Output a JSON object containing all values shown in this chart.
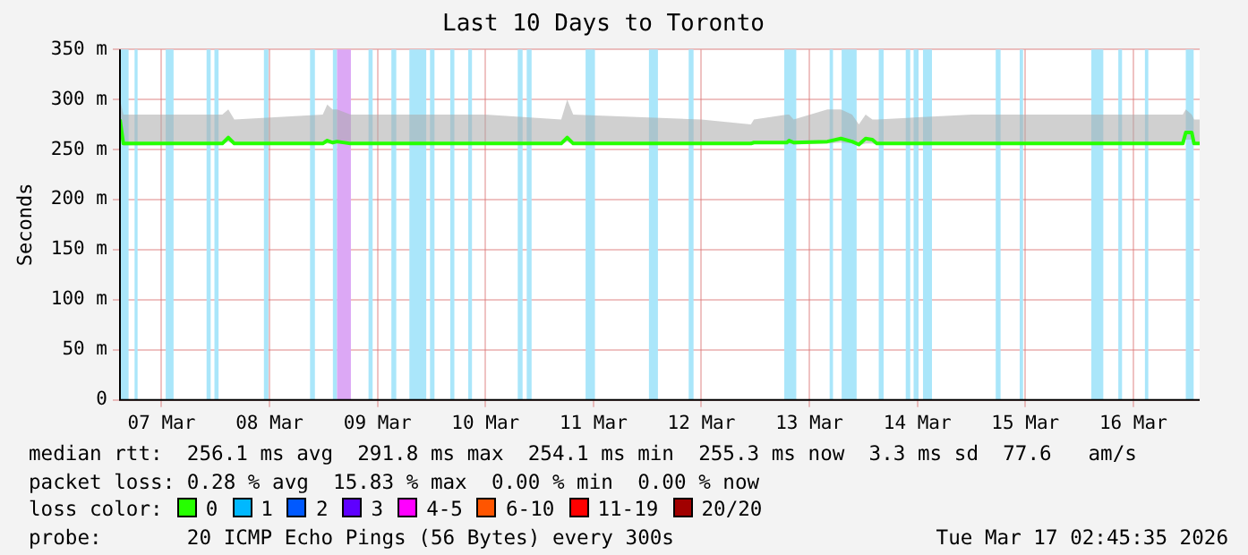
{
  "chart_data": {
    "type": "line",
    "title": "Last 10 Days to Toronto",
    "ylabel": "Seconds",
    "legend_title": "loss color:",
    "legend": "bottom",
    "grid": true,
    "marker": "none",
    "line_style": "solid",
    "xlim": [
      "2026-03-07T02:45",
      "2026-03-17T02:45"
    ],
    "xticks": [
      {
        "value": "2026-03-07T12:00",
        "label": "07 Mar"
      },
      {
        "value": "2026-03-08T12:00",
        "label": "08 Mar"
      },
      {
        "value": "2026-03-09T12:00",
        "label": "09 Mar"
      },
      {
        "value": "2026-03-10T12:00",
        "label": "10 Mar"
      },
      {
        "value": "2026-03-11T12:00",
        "label": "11 Mar"
      },
      {
        "value": "2026-03-12T12:00",
        "label": "12 Mar"
      },
      {
        "value": "2026-03-13T12:00",
        "label": "13 Mar"
      },
      {
        "value": "2026-03-14T12:00",
        "label": "14 Mar"
      },
      {
        "value": "2026-03-15T12:00",
        "label": "15 Mar"
      },
      {
        "value": "2026-03-16T12:00",
        "label": "16 Mar"
      }
    ],
    "ylim": [
      0,
      350
    ],
    "yticks": [
      0,
      {
        "value": 50,
        "label": "50 m"
      },
      {
        "value": 100,
        "label": "100 m"
      },
      {
        "value": 150,
        "label": "150 m"
      },
      {
        "value": 200,
        "label": "200 m"
      },
      {
        "value": 250,
        "label": "250 m"
      },
      {
        "value": 300,
        "label": "300 m"
      },
      {
        "value": 350,
        "label": "350 m"
      }
    ],
    "series": [
      {
        "name": "0",
        "color": "#26ff00",
        "x": [
          "2026-03-07T02:45",
          "2026-03-07T03:30",
          "2026-03-08T01:30",
          "2026-03-08T02:50",
          "2026-03-08T04:10",
          "2026-03-08T23:50",
          "2026-03-09T00:50",
          "2026-03-09T02:00",
          "2026-03-09T03:00",
          "2026-03-09T06:00",
          "2026-03-10T12:00",
          "2026-03-11T04:50",
          "2026-03-11T06:10",
          "2026-03-11T07:30",
          "2026-03-12T12:00",
          "2026-03-12T23:00",
          "2026-03-12T23:40",
          "2026-03-13T07:00",
          "2026-03-13T07:30",
          "2026-03-13T08:30",
          "2026-03-13T16:00",
          "2026-03-13T19:00",
          "2026-03-13T21:30",
          "2026-03-13T23:00",
          "2026-03-14T00:30",
          "2026-03-14T02:00",
          "2026-03-14T03:00",
          "2026-03-15T00:00",
          "2026-03-16T00:00",
          "2026-03-16T23:00",
          "2026-03-16T23:40",
          "2026-03-17T01:00",
          "2026-03-17T01:30",
          "2026-03-17T02:45"
        ],
        "values": [
          280,
          256,
          256,
          262,
          256,
          256,
          259,
          257,
          258,
          256,
          256,
          256,
          262,
          256,
          256,
          256,
          257,
          257,
          259,
          257,
          258,
          261,
          258,
          255,
          261,
          260,
          256,
          256,
          256,
          256,
          267,
          267,
          256,
          256
        ],
        "lower": [
          275,
          254,
          255,
          258,
          255,
          255,
          256,
          255,
          256,
          255,
          255,
          255,
          258,
          255,
          255,
          255,
          256,
          256,
          256,
          255,
          256,
          257,
          256,
          254,
          256,
          256,
          255,
          255,
          255,
          255,
          260,
          260,
          255,
          255
        ],
        "upper": [
          300,
          285,
          285,
          290,
          280,
          285,
          295,
          290,
          290,
          285,
          285,
          280,
          300,
          285,
          280,
          275,
          280,
          285,
          285,
          280,
          290,
          290,
          285,
          275,
          285,
          280,
          280,
          285,
          285,
          285,
          290,
          285,
          280,
          280
        ]
      },
      {
        "name": "1",
        "color": "#00b8ff"
      },
      {
        "name": "2",
        "color": "#0059ff"
      },
      {
        "name": "3",
        "color": "#5e00ff"
      },
      {
        "name": "4-5",
        "color": "#ff00ff"
      },
      {
        "name": "6-10",
        "color": "#ff5500"
      },
      {
        "name": "11-19",
        "color": "#ff0000"
      },
      {
        "name": "20/20",
        "color": "#a10000"
      }
    ],
    "bands": [
      {
        "axis": "x",
        "from": "2026-03-07T02:45",
        "to": "2026-03-07T04:40",
        "color": "#aae6fa"
      },
      {
        "axis": "x",
        "from": "2026-03-07T06:00",
        "to": "2026-03-07T06:40",
        "color": "#aae6fa"
      },
      {
        "axis": "x",
        "from": "2026-03-07T12:55",
        "to": "2026-03-07T14:40",
        "color": "#aae6fa"
      },
      {
        "axis": "x",
        "from": "2026-03-07T22:00",
        "to": "2026-03-07T22:55",
        "color": "#aae6fa"
      },
      {
        "axis": "x",
        "from": "2026-03-07T23:45",
        "to": "2026-03-08T00:40",
        "color": "#aae6fa"
      },
      {
        "axis": "x",
        "from": "2026-03-08T10:45",
        "to": "2026-03-08T11:45",
        "color": "#aae6fa"
      },
      {
        "axis": "x",
        "from": "2026-03-08T21:00",
        "to": "2026-03-08T22:05",
        "color": "#aae6fa"
      },
      {
        "axis": "x",
        "from": "2026-03-09T02:05",
        "to": "2026-03-09T03:00",
        "color": "#aae6fa"
      },
      {
        "axis": "x",
        "from": "2026-03-09T03:00",
        "to": "2026-03-09T06:05",
        "color": "#dca8f5"
      },
      {
        "axis": "x",
        "from": "2026-03-09T10:00",
        "to": "2026-03-09T10:55",
        "color": "#aae6fa"
      },
      {
        "axis": "x",
        "from": "2026-03-09T15:05",
        "to": "2026-03-09T16:10",
        "color": "#aae6fa"
      },
      {
        "axis": "x",
        "from": "2026-03-09T19:05",
        "to": "2026-03-09T22:50",
        "color": "#aae6fa"
      },
      {
        "axis": "x",
        "from": "2026-03-09T23:40",
        "to": "2026-03-10T00:40",
        "color": "#aae6fa"
      },
      {
        "axis": "x",
        "from": "2026-03-10T04:10",
        "to": "2026-03-10T05:05",
        "color": "#aae6fa"
      },
      {
        "axis": "x",
        "from": "2026-03-10T08:10",
        "to": "2026-03-10T09:00",
        "color": "#aae6fa"
      },
      {
        "axis": "x",
        "from": "2026-03-10T19:10",
        "to": "2026-03-10T20:15",
        "color": "#aae6fa"
      },
      {
        "axis": "x",
        "from": "2026-03-10T21:10",
        "to": "2026-03-10T22:15",
        "color": "#aae6fa"
      },
      {
        "axis": "x",
        "from": "2026-03-11T10:15",
        "to": "2026-03-11T12:20",
        "color": "#aae6fa"
      },
      {
        "axis": "x",
        "from": "2026-03-12T00:20",
        "to": "2026-03-12T02:20",
        "color": "#aae6fa"
      },
      {
        "axis": "x",
        "from": "2026-03-12T09:10",
        "to": "2026-03-12T10:15",
        "color": "#aae6fa"
      },
      {
        "axis": "x",
        "from": "2026-03-13T06:25",
        "to": "2026-03-13T09:05",
        "color": "#aae6fa"
      },
      {
        "axis": "x",
        "from": "2026-03-13T16:30",
        "to": "2026-03-13T17:15",
        "color": "#aae6fa"
      },
      {
        "axis": "x",
        "from": "2026-03-13T19:10",
        "to": "2026-03-13T22:30",
        "color": "#aae6fa"
      },
      {
        "axis": "x",
        "from": "2026-03-14T03:25",
        "to": "2026-03-14T04:30",
        "color": "#aae6fa"
      },
      {
        "axis": "x",
        "from": "2026-03-14T09:25",
        "to": "2026-03-14T10:25",
        "color": "#aae6fa"
      },
      {
        "axis": "x",
        "from": "2026-03-14T11:10",
        "to": "2026-03-14T12:15",
        "color": "#aae6fa"
      },
      {
        "axis": "x",
        "from": "2026-03-14T13:15",
        "to": "2026-03-14T15:15",
        "color": "#aae6fa"
      },
      {
        "axis": "x",
        "from": "2026-03-15T05:25",
        "to": "2026-03-15T06:30",
        "color": "#aae6fa"
      },
      {
        "axis": "x",
        "from": "2026-03-15T10:45",
        "to": "2026-03-15T11:30",
        "color": "#aae6fa"
      },
      {
        "axis": "x",
        "from": "2026-03-16T02:40",
        "to": "2026-03-16T05:20",
        "color": "#aae6fa"
      },
      {
        "axis": "x",
        "from": "2026-03-16T08:40",
        "to": "2026-03-16T09:30",
        "color": "#aae6fa"
      },
      {
        "axis": "x",
        "from": "2026-03-16T14:35",
        "to": "2026-03-16T15:20",
        "color": "#aae6fa"
      },
      {
        "axis": "x",
        "from": "2026-03-16T23:40",
        "to": "2026-03-17T01:25",
        "color": "#aae6fa"
      }
    ],
    "annotations": [
      "median rtt:  256.1 ms avg  291.8 ms max  254.1 ms min  255.3 ms now  3.3 ms sd  77.6   am/s",
      "packet loss: 0.28 % avg  15.83 % max  0.00 % min  0.00 % now",
      "probe:       20 ICMP Echo Pings (56 Bytes) every 300s",
      "Tue Mar 17 02:45:35 2026"
    ]
  }
}
